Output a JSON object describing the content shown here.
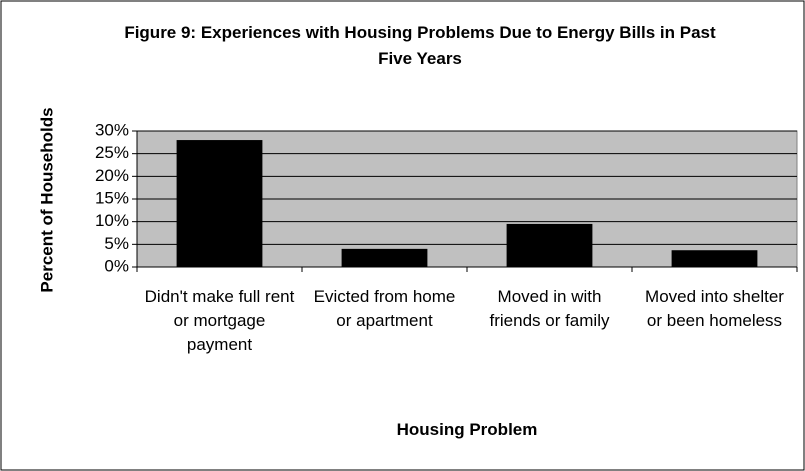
{
  "chart_data": {
    "type": "bar",
    "title": "Figure 9: Experiences with Housing Problems Due to Energy Bills in Past Five Years",
    "x_label": "Housing Problem",
    "y_label": "Percent of Households",
    "categories": [
      "Didn't make full rent or mortgage payment",
      "Evicted from home or apartment",
      "Moved in with friends or family",
      "Moved into shelter or been homeless"
    ],
    "values": [
      28,
      4,
      9.5,
      3.7
    ],
    "color": "#000000",
    "background": "#c0c0c0",
    "ylim": [
      0,
      30
    ],
    "yticks": [
      {
        "value": 0,
        "label": "0%"
      },
      {
        "value": 5,
        "label": "5%"
      },
      {
        "value": 10,
        "label": "10%"
      },
      {
        "value": 15,
        "label": "15%"
      },
      {
        "value": 20,
        "label": "20%"
      },
      {
        "value": 25,
        "label": "25%"
      },
      {
        "value": 30,
        "label": "30%"
      }
    ],
    "grid": true
  }
}
